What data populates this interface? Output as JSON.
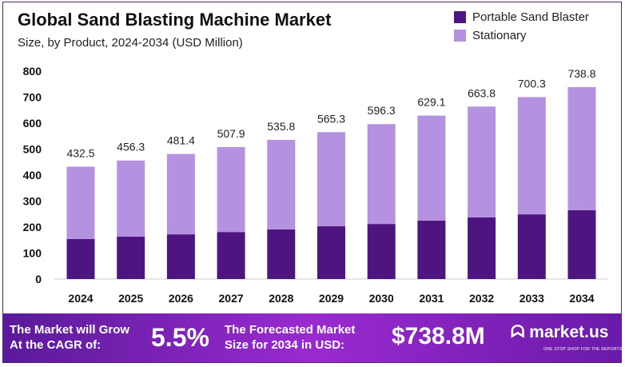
{
  "chart_data": {
    "type": "bar",
    "stacked": true,
    "title": "Global Sand Blasting Machine Market",
    "subtitle": "Size, by Product, 2024-2034 (USD Million)",
    "categories": [
      "2024",
      "2025",
      "2026",
      "2027",
      "2028",
      "2029",
      "2030",
      "2031",
      "2032",
      "2033",
      "2034"
    ],
    "series": [
      {
        "name": "Portable Sand Blaster",
        "color": "#4e1580",
        "values": [
          154,
          163,
          172,
          181,
          191,
          203,
          212,
          225,
          237,
          249,
          265
        ]
      },
      {
        "name": "Stationary",
        "color": "#b592e0",
        "values": [
          278.5,
          293.3,
          309.4,
          326.9,
          344.8,
          362.3,
          384.3,
          404.1,
          426.8,
          451.3,
          473.8
        ]
      }
    ],
    "totals": [
      "432.5",
      "456.3",
      "481.4",
      "507.9",
      "535.8",
      "565.3",
      "596.3",
      "629.1",
      "663.8",
      "700.3",
      "738.8"
    ],
    "yticks": [
      "0",
      "100",
      "200",
      "300",
      "400",
      "500",
      "600",
      "700",
      "800"
    ],
    "ylim": [
      0,
      800
    ],
    "grid": false,
    "legend": "top-right"
  },
  "banner": {
    "cagr_text": "The Market will Grow At the CAGR of:",
    "cagr": "5.5%",
    "forecast_text": "The Forecasted Market Size for 2034 in USD:",
    "forecast": "$738.8M",
    "logo": "market.us",
    "tagline": "ONE STOP SHOP FOR THE REPORTS"
  }
}
